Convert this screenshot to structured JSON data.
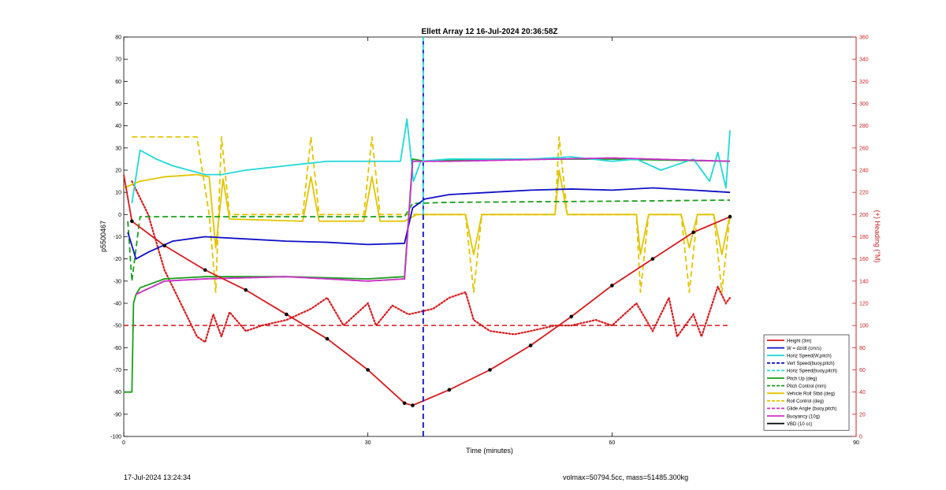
{
  "title": "Ellett Array 12 16-Jul-2024 20:36:58Z",
  "footer": {
    "left": "17-Jul-2024 13:24:34",
    "right": "volmax=50794.5cc, mass=51485.300kg"
  },
  "colors": {
    "red": "#d7191c",
    "blue": "#1010c8",
    "cyan": "#22d8d8",
    "green": "#1a9e1a",
    "yellow": "#e3c400",
    "magenta": "#c833c8",
    "black": "#000000",
    "axis2": "#cc2222"
  },
  "chart_data": {
    "type": "line",
    "title": "Ellett Array 12 16-Jul-2024 20:36:58Z",
    "xlabel": "Time (minutes)",
    "ylabel": "p5500467",
    "y2label": "(+) Heading (°M)",
    "xlim": [
      0,
      90
    ],
    "ylim": [
      -100,
      80
    ],
    "y2lim": [
      0,
      360
    ],
    "xticks": [
      0,
      30,
      60,
      90
    ],
    "yticks": [
      -100,
      -90,
      -80,
      -70,
      -60,
      -50,
      -40,
      -30,
      -20,
      -10,
      0,
      10,
      20,
      30,
      40,
      50,
      60,
      70,
      80
    ],
    "y2ticks": [
      0,
      20,
      40,
      60,
      80,
      100,
      120,
      140,
      160,
      180,
      200,
      220,
      240,
      260,
      280,
      300,
      320,
      340,
      360
    ],
    "grid": false,
    "legend_position": "bottom-right",
    "series": [
      {
        "name": "Height (3m)",
        "color": "#d7191c",
        "style": "solid",
        "x": [
          0,
          1,
          5,
          10,
          15,
          20,
          25,
          30,
          34.5,
          35.5,
          40,
          45,
          50,
          55,
          60,
          65,
          70,
          74.5
        ],
        "y": [
          18,
          -3,
          -14,
          -25,
          -34,
          -45,
          -56,
          -70,
          -85,
          -86,
          -79,
          -70,
          -59,
          -46,
          -32,
          -20,
          -8,
          -1
        ]
      },
      {
        "name": "W = dz/dt (cm/s)",
        "color": "#1010c8",
        "style": "solid",
        "x": [
          0.5,
          1.5,
          3,
          6,
          10,
          15,
          20,
          25,
          30,
          34.5,
          35.5,
          37,
          40,
          45,
          50,
          55,
          60,
          65,
          70,
          74.5
        ],
        "y": [
          -8,
          -20,
          -17,
          -12,
          -10,
          -11,
          -12,
          -12.5,
          -13.5,
          -13,
          3,
          7,
          9,
          10,
          11,
          11.5,
          11,
          12,
          11,
          10
        ]
      },
      {
        "name": "Horiz Speed(W,pitch)",
        "color": "#22d8d8",
        "style": "solid",
        "x": [
          1,
          2,
          4,
          6,
          8,
          10,
          12,
          15,
          20,
          25,
          30,
          34,
          34.8,
          35.6,
          36.5,
          40,
          45,
          50,
          55,
          60,
          63,
          66,
          70,
          72,
          73,
          74,
          74.5
        ],
        "y": [
          5,
          29,
          25,
          22,
          20,
          18,
          18,
          20,
          22,
          24,
          24,
          24,
          43,
          15,
          24,
          25,
          25,
          25,
          26,
          24,
          25,
          20,
          25,
          15,
          28,
          12,
          38
        ]
      },
      {
        "name": "Vert Speed(buoy,pitch)",
        "color": "#1010c8",
        "style": "dashed",
        "x": [
          36.8,
          36.8
        ],
        "y": [
          -100,
          80
        ]
      },
      {
        "name": "Horiz Speed(buoy,pitch)",
        "color": "#22d8d8",
        "style": "dashed",
        "x": [
          36.8,
          36.8
        ],
        "y": [
          0,
          80
        ]
      },
      {
        "name": "Pitch Up (deg)",
        "color": "#1a9e1a",
        "style": "solid",
        "x": [
          0,
          1,
          1.2,
          1.5,
          2,
          5,
          10,
          20,
          30,
          34.5,
          35.5,
          37,
          45,
          60,
          74.5
        ],
        "y": [
          -80,
          -80,
          -40,
          -36,
          -33,
          -29,
          -28,
          -28,
          -29,
          -28,
          25,
          24,
          25,
          25,
          24
        ]
      },
      {
        "name": "Pitch Control (mm)",
        "color": "#1a9e1a",
        "style": "dashed",
        "x": [
          0.5,
          1,
          2,
          34.5,
          35.5,
          40,
          60,
          74.5
        ],
        "y": [
          -3,
          -30,
          -1,
          -1,
          5,
          5.5,
          6,
          6.5
        ]
      },
      {
        "name": "Vehicle Roll Stbd (deg)",
        "color": "#e3c400",
        "style": "solid",
        "x": [
          0,
          2,
          5,
          9,
          10.5,
          11.3,
          12.2,
          13,
          22,
          23,
          24,
          29.5,
          30.5,
          31.5,
          34.5,
          36,
          42,
          43,
          44,
          53,
          53.5,
          54.5,
          63,
          63.5,
          64.5,
          68.5,
          69.5,
          70.5,
          72.5,
          73.5,
          74.5
        ],
        "y": [
          12,
          15,
          17,
          18,
          17,
          -15,
          16,
          -2,
          -3,
          17,
          -3,
          -3,
          17,
          -3,
          -3,
          0,
          0,
          -18,
          0,
          0,
          20,
          0,
          0,
          -18,
          0,
          0,
          -15,
          0,
          0,
          -18,
          0
        ]
      },
      {
        "name": "Roll Control (deg)",
        "color": "#e3c400",
        "style": "dashed",
        "x": [
          1,
          9,
          10.5,
          11.3,
          12,
          13,
          22,
          23,
          24,
          29.5,
          30.5,
          31.5,
          35,
          42,
          43,
          44,
          53,
          53.5,
          54.5,
          63,
          63.5,
          64.5,
          68.5,
          69.5,
          70.5,
          72.5,
          73.5,
          74.5
        ],
        "y": [
          35,
          35,
          0,
          -35,
          35,
          0,
          0,
          35,
          0,
          0,
          35,
          0,
          0,
          0,
          -35,
          0,
          0,
          35,
          0,
          0,
          -35,
          0,
          0,
          -35,
          0,
          0,
          -35,
          0
        ]
      },
      {
        "name": "Glide Angle (buoy,pitch)",
        "color": "#c833c8",
        "style": "dashed",
        "x": [
          1.5,
          5,
          10,
          20,
          30,
          34.5,
          35.5,
          40,
          60,
          74.5
        ],
        "y": [
          -36,
          -30,
          -29,
          -28,
          -30,
          -29,
          24,
          24,
          25.5,
          24
        ]
      },
      {
        "name": "Buoyancy (10g)",
        "color": "#c833c8",
        "style": "solid",
        "x": [
          1.5,
          5,
          10,
          20,
          30,
          34.5,
          35.5,
          40,
          60,
          74.5
        ],
        "y": [
          -36,
          -30,
          -29,
          -28,
          -30,
          -29,
          24,
          24,
          25.5,
          24
        ]
      },
      {
        "name": "VBD (10 cc)",
        "color": "#000000",
        "style": "solid",
        "x": [
          0,
          1,
          2,
          34.5,
          35.5,
          36,
          74.5
        ],
        "y": [
          17,
          -5,
          -7,
          -7,
          4,
          7,
          7
        ]
      }
    ],
    "heading": {
      "name": "(+) Heading (°M)",
      "color": "#d7191c",
      "x": [
        1,
        3,
        5,
        7,
        9,
        10,
        11,
        12,
        13,
        15,
        17,
        20,
        23,
        25,
        27,
        30,
        31,
        33,
        35,
        38,
        40,
        42,
        43,
        45,
        48,
        50,
        53,
        55,
        58,
        60,
        63,
        65,
        67,
        68,
        70,
        71,
        73,
        74,
        74.5
      ],
      "y": [
        230,
        200,
        150,
        120,
        90,
        85,
        110,
        90,
        112,
        95,
        100,
        105,
        115,
        125,
        100,
        120,
        100,
        118,
        110,
        115,
        125,
        130,
        105,
        95,
        92,
        95,
        100,
        100,
        105,
        100,
        120,
        95,
        125,
        90,
        110,
        90,
        135,
        120,
        125
      ],
      "reference": 100
    }
  }
}
